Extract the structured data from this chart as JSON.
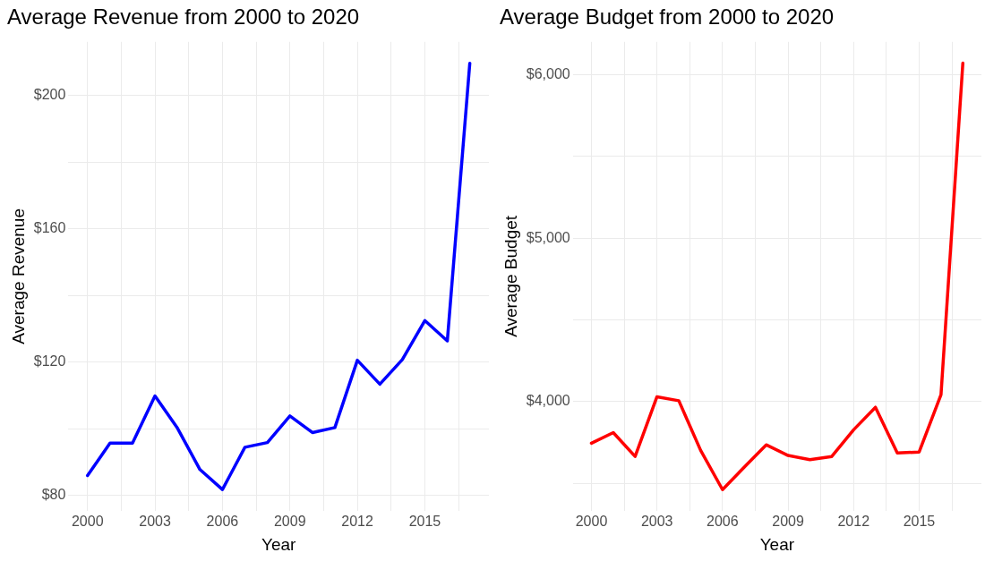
{
  "chart_data": [
    {
      "type": "line",
      "title": "Average Revenue from 2000 to 2020",
      "xlabel": "Year",
      "ylabel": "Average Revenue",
      "x": [
        2000,
        2001,
        2002,
        2003,
        2004,
        2005,
        2006,
        2007,
        2008,
        2009,
        2010,
        2011,
        2012,
        2013,
        2014,
        2015,
        2016,
        2017
      ],
      "series": [
        {
          "color": "#0000ff",
          "values": [
            86.0,
            95.7,
            95.7,
            109.9,
            100.2,
            87.8,
            81.8,
            94.5,
            95.9,
            103.9,
            98.9,
            100.4,
            120.6,
            113.4,
            120.8,
            132.5,
            126.4,
            209.7
          ]
        }
      ],
      "xlim": [
        1999.15,
        2017.85
      ],
      "xticks": [
        2000,
        {
          "value": 2001.5,
          "label": null
        },
        2003,
        {
          "value": 2004.5,
          "label": null
        },
        2006,
        {
          "value": 2007.5,
          "label": null
        },
        2009,
        {
          "value": 2010.5,
          "label": null
        },
        2012,
        {
          "value": 2013.5,
          "label": null
        },
        2015,
        {
          "value": 2016.5,
          "label": null
        }
      ],
      "ylim": [
        75.4,
        216.1
      ],
      "yticks": [
        {
          "value": 80,
          "label": "$80"
        },
        {
          "value": 100,
          "label": null
        },
        {
          "value": 120,
          "label": "$120"
        },
        {
          "value": 140,
          "label": null
        },
        {
          "value": 160,
          "label": "$160"
        },
        {
          "value": 180,
          "label": null
        },
        {
          "value": 200,
          "label": "$200"
        }
      ],
      "grid": true,
      "legend": false,
      "marker": "none"
    },
    {
      "type": "line",
      "title": "Average Budget from 2000 to 2020",
      "xlabel": "Year",
      "ylabel": "Average Budget",
      "x": [
        2000,
        2001,
        2002,
        2003,
        2004,
        2005,
        2006,
        2007,
        2008,
        2009,
        2010,
        2011,
        2012,
        2013,
        2014,
        2015,
        2016,
        2017
      ],
      "series": [
        {
          "color": "#ff0000",
          "values": [
            3746,
            3811,
            3665,
            4030,
            4006,
            3702,
            3462,
            3600,
            3736,
            3671,
            3645,
            3665,
            3828,
            3966,
            3686,
            3692,
            4043,
            6071
          ]
        }
      ],
      "xlim": [
        1999.15,
        2017.85
      ],
      "xticks": [
        2000,
        {
          "value": 2001.5,
          "label": null
        },
        2003,
        {
          "value": 2004.5,
          "label": null
        },
        2006,
        {
          "value": 2007.5,
          "label": null
        },
        2009,
        {
          "value": 2010.5,
          "label": null
        },
        2012,
        {
          "value": 2013.5,
          "label": null
        },
        2015,
        {
          "value": 2016.5,
          "label": null
        }
      ],
      "ylim": [
        3332,
        6201
      ],
      "yticks": [
        {
          "value": 3500,
          "label": null
        },
        {
          "value": 4000,
          "label": "$4,000"
        },
        {
          "value": 4500,
          "label": null
        },
        {
          "value": 5000,
          "label": "$5,000"
        },
        {
          "value": 5500,
          "label": null
        },
        {
          "value": 6000,
          "label": "$6,000"
        }
      ],
      "grid": true,
      "legend": false,
      "marker": "none"
    }
  ]
}
